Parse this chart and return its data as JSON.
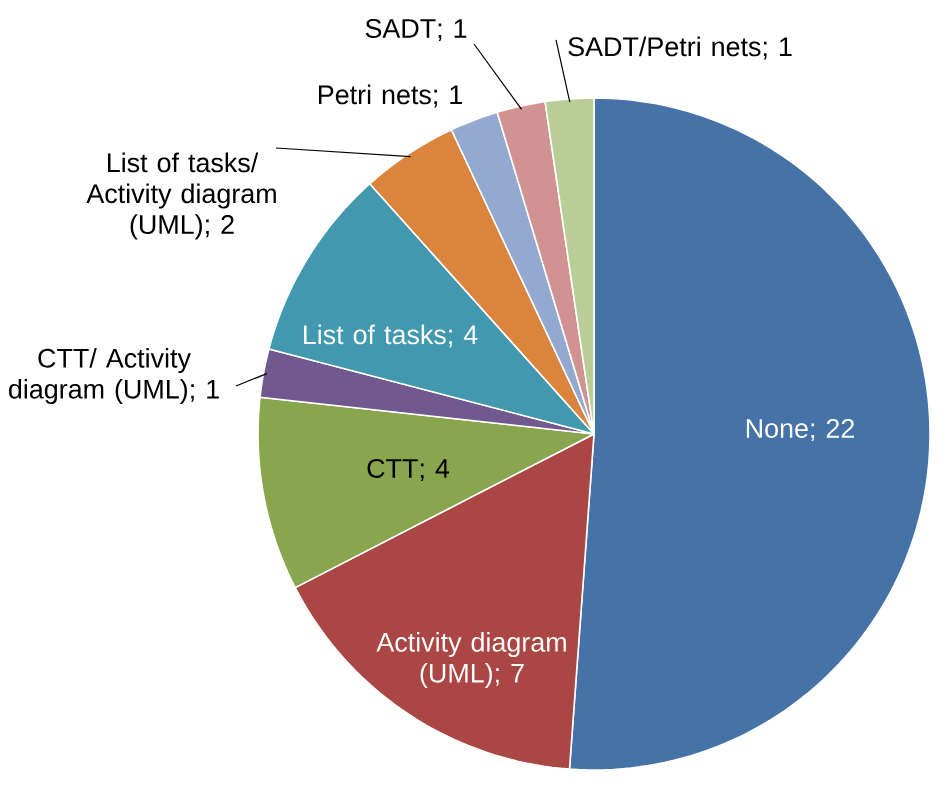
{
  "chart_data": {
    "type": "pie",
    "categories": [
      "None",
      "Activity diagram (UML)",
      "CTT",
      "CTT/ Activity diagram (UML)",
      "List of tasks",
      "List of tasks/ Activity diagram (UML)",
      "Petri nets",
      "SADT",
      "SADT/Petri nets"
    ],
    "values": [
      22,
      7,
      4,
      1,
      4,
      2,
      1,
      1,
      1
    ],
    "value_labels": [
      "; 22",
      "; 7",
      "; 4",
      "; 1",
      "; 4",
      "; 2",
      "; 1",
      "; 1",
      "; 1"
    ],
    "colors": [
      "#4572a7",
      "#aa4643",
      "#89a54e",
      "#71588f",
      "#4198af",
      "#db843d",
      "#93a9cf",
      "#d19392",
      "#b9cd96"
    ]
  }
}
